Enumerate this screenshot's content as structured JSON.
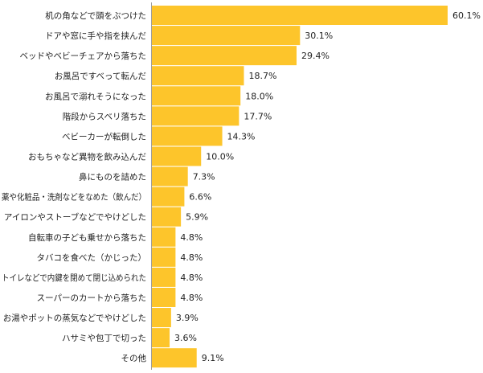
{
  "chart_data": {
    "type": "bar",
    "orientation": "horizontal",
    "title": "",
    "xlabel": "",
    "ylabel": "",
    "xlim": [
      0,
      60.1
    ],
    "grid": false,
    "legend": "none",
    "bar_color": "#FDC52B",
    "axis_color": "#9E9E9E",
    "categories": [
      "机の角などで頭をぶつけた",
      "ドアや窓に手や指を挟んだ",
      "ベッドやベビーチェアから落ちた",
      "お風呂ですべって転んだ",
      "お風呂で溺れそうになった",
      "階段からスベリ落ちた",
      "ベビーカーが転倒した",
      "おもちゃなど異物を飲み込んだ",
      "鼻にものを詰めた",
      "薬や化粧品・洗剤などをなめた（飲んだ）",
      "アイロンやストーブなどでやけどした",
      "自転車の子ども乗せから落ちた",
      "タバコを食べた（かじった）",
      "トイレなどで内鍵を閉めて閉じ込められた",
      "スーパーのカートから落ちた",
      "お湯やポットの蒸気などでやけどした",
      "ハサミや包丁で切った",
      "その他"
    ],
    "values": [
      60.1,
      30.1,
      29.4,
      18.7,
      18.0,
      17.7,
      14.3,
      10.0,
      7.3,
      6.6,
      5.9,
      4.8,
      4.8,
      4.8,
      4.8,
      3.9,
      3.6,
      9.1
    ],
    "value_labels": [
      "60.1%",
      "30.1%",
      "29.4%",
      "18.7%",
      "18.0%",
      "17.7%",
      "14.3%",
      "10.0%",
      "7.3%",
      "6.6%",
      "5.9%",
      "4.8%",
      "4.8%",
      "4.8%",
      "4.8%",
      "3.9%",
      "3.6%",
      "9.1%"
    ]
  }
}
